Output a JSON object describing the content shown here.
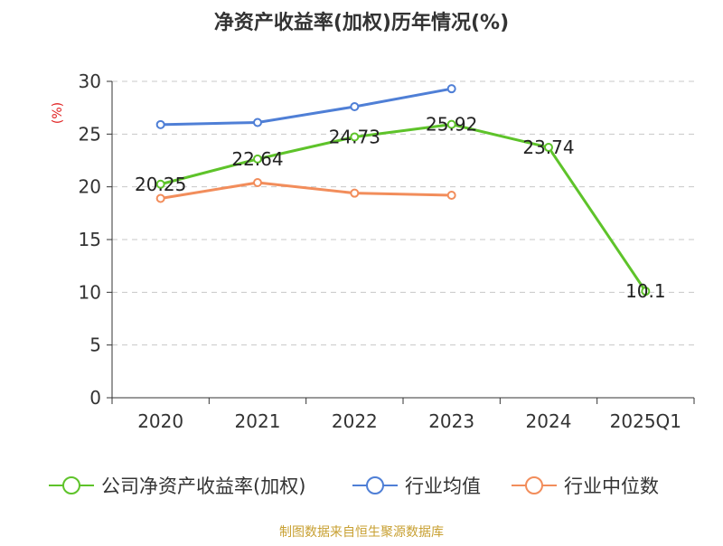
{
  "chart_data": {
    "type": "line",
    "title": "净资产收益率(加权)历年情况(%)",
    "ylabel": "(%)",
    "xlabel": "",
    "categories": [
      "2020",
      "2021",
      "2022",
      "2023",
      "2024",
      "2025Q1"
    ],
    "ylim": [
      0,
      30
    ],
    "yticks": [
      0,
      5,
      10,
      15,
      20,
      25,
      30
    ],
    "grid": true,
    "legend_position": "bottom",
    "series": [
      {
        "name": "公司净资产收益率(加权)",
        "color": "#5ec32a",
        "values": [
          20.25,
          22.64,
          24.73,
          25.92,
          23.74,
          10.1
        ],
        "labels": [
          "20.25",
          "22.64",
          "24.73",
          "25.92",
          "23.74",
          "10.1"
        ]
      },
      {
        "name": "行业均值",
        "color": "#4f7fd6",
        "values": [
          25.9,
          26.1,
          27.6,
          29.3,
          null,
          null
        ]
      },
      {
        "name": "行业中位数",
        "color": "#f28d5b",
        "values": [
          18.9,
          20.4,
          19.4,
          19.2,
          null,
          null
        ]
      }
    ]
  },
  "footer": {
    "source": "制图数据来自恒生聚源数据库"
  }
}
